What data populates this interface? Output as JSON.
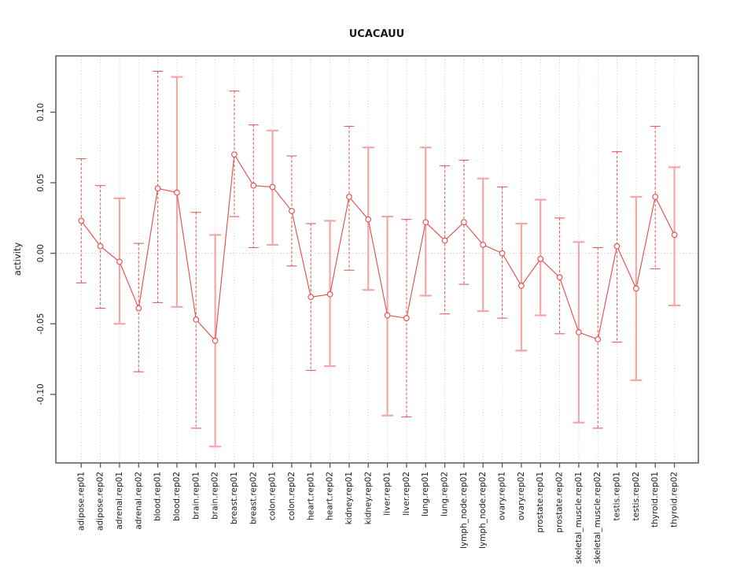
{
  "chart_data": {
    "type": "scatter",
    "title": "UCACAUU",
    "xlabel": "",
    "ylabel": "activity",
    "ylim": [
      -0.149,
      0.14
    ],
    "grid": "vertical-dotted",
    "zero_reference_line": true,
    "legend": "none",
    "yticks": [
      {
        "label": "0.10",
        "value": 0.1
      },
      {
        "label": "0.05",
        "value": 0.05
      },
      {
        "label": "0.00",
        "value": 0.0
      },
      {
        "label": "-0.05",
        "value": -0.05
      },
      {
        "label": "-0.10",
        "value": -0.1
      }
    ],
    "categories": [
      "adipose.rep01",
      "adipose.rep02",
      "adrenal.rep01",
      "adrenal.rep02",
      "blood.rep01",
      "blood.rep02",
      "brain.rep01",
      "brain.rep02",
      "breast.rep01",
      "breast.rep02",
      "colon.rep01",
      "colon.rep02",
      "heart.rep01",
      "heart.rep02",
      "kidney.rep01",
      "kidney.rep02",
      "liver.rep01",
      "liver.rep02",
      "lung.rep01",
      "lung.rep02",
      "lymph_node.rep01",
      "lymph_node.rep02",
      "ovary.rep01",
      "ovary.rep02",
      "prostate.rep01",
      "prostate.rep02",
      "skeletal_muscle.rep01",
      "skeletal_muscle.rep02",
      "testis.rep01",
      "testis.rep02",
      "thyroid.rep01",
      "thyroid.rep02"
    ],
    "series": [
      {
        "name": "activity",
        "marker": "open-circle",
        "values": [
          0.023,
          0.005,
          -0.006,
          -0.039,
          0.046,
          0.043,
          -0.047,
          -0.062,
          0.07,
          0.048,
          0.047,
          0.03,
          -0.031,
          -0.029,
          0.04,
          0.024,
          -0.044,
          -0.046,
          0.022,
          0.009,
          0.022,
          0.006,
          0.0,
          -0.023,
          -0.004,
          -0.017,
          -0.056,
          -0.061,
          0.005,
          -0.025,
          0.04,
          0.013
        ],
        "ci_low": [
          -0.021,
          -0.039,
          -0.05,
          -0.084,
          -0.035,
          -0.038,
          -0.124,
          -0.137,
          0.026,
          0.004,
          0.006,
          -0.009,
          -0.083,
          -0.08,
          -0.012,
          -0.026,
          -0.115,
          -0.116,
          -0.03,
          -0.043,
          -0.022,
          -0.041,
          -0.046,
          -0.069,
          -0.044,
          -0.057,
          -0.12,
          -0.124,
          -0.063,
          -0.09,
          -0.011,
          -0.037
        ],
        "ci_high": [
          0.067,
          0.048,
          0.039,
          0.007,
          0.129,
          0.125,
          0.029,
          0.013,
          0.115,
          0.091,
          0.087,
          0.069,
          0.021,
          0.023,
          0.09,
          0.075,
          0.026,
          0.024,
          0.075,
          0.062,
          0.066,
          0.053,
          0.047,
          0.021,
          0.038,
          0.025,
          0.008,
          0.004,
          0.072,
          0.04,
          0.09,
          0.061
        ],
        "ci_style": [
          "dashed",
          "dashed",
          "solid",
          "dashed",
          "dashed",
          "solid",
          "dashed",
          "solid",
          "dashed",
          "dashed",
          "solid",
          "dashed",
          "dashed",
          "solid",
          "dashed",
          "solid",
          "solid",
          "dashed",
          "solid",
          "dashed",
          "dashed",
          "solid",
          "dashed",
          "solid",
          "solid",
          "dashed",
          "solid",
          "dashed",
          "dashed",
          "solid",
          "dashed",
          "solid"
        ]
      }
    ],
    "colors": {
      "point_line": "#e84f4f",
      "ci_dashed": "#e25c5c",
      "ci_solid": "#f4a7a7",
      "grid": "#cccccc",
      "zero_line": "#ddcaca",
      "frame": "#595959",
      "text": "#1a1a1a"
    }
  }
}
